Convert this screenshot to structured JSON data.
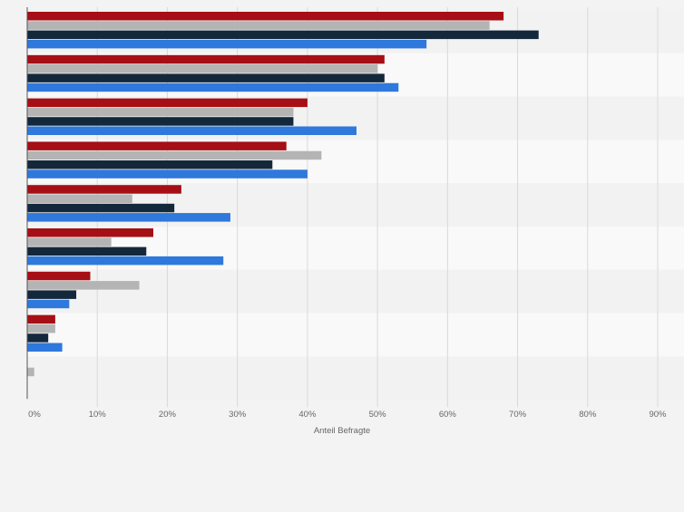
{
  "chart_data": {
    "type": "bar",
    "orientation": "horizontal",
    "xlabel": "Anteil Befragte",
    "xlim": [
      0,
      90
    ],
    "x_ticks": [
      "0%",
      "10%",
      "20%",
      "30%",
      "40%",
      "50%",
      "60%",
      "70%",
      "80%",
      "90%"
    ],
    "grid": true,
    "categories": [
      "",
      "",
      "",
      "",
      "",
      "",
      "",
      "",
      ""
    ],
    "series": [
      {
        "color": "#a50f15",
        "values": [
          68,
          51,
          40,
          37,
          22,
          18,
          9,
          4,
          0
        ]
      },
      {
        "color": "#b4b4b4",
        "values": [
          66,
          50,
          38,
          42,
          15,
          12,
          16,
          4,
          1
        ]
      },
      {
        "color": "#14283c",
        "values": [
          73,
          51,
          38,
          35,
          21,
          17,
          7,
          3,
          0
        ]
      },
      {
        "color": "#2f78dc",
        "values": [
          57,
          53,
          47,
          40,
          29,
          28,
          6,
          5,
          0
        ]
      }
    ]
  },
  "colors": {
    "band_dark": "#f2f2f2",
    "band_light": "#f9f9f9",
    "grid": "#d9d9d9",
    "axis": "#555555",
    "tick_text": "#666666"
  }
}
